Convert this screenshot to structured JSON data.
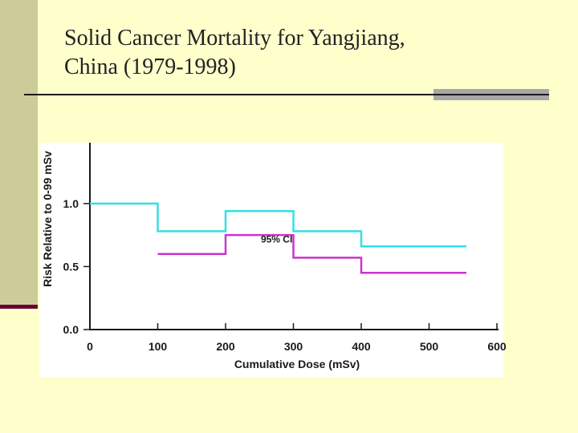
{
  "slide": {
    "title_line1": "Solid Cancer Mortality for Yangjiang,",
    "title_line2": "China (1979-1998)"
  },
  "chart_data": {
    "type": "line",
    "step": true,
    "title": "",
    "xlabel": "Cumulative Dose (mSv)",
    "ylabel": "Risk Relative to 0-99 mSv",
    "xlim": [
      0,
      600
    ],
    "ylim": [
      0,
      1.4
    ],
    "x_ticks": [
      0,
      100,
      200,
      300,
      400,
      500,
      600
    ],
    "x_tick_labels": [
      "0",
      "100",
      "200",
      "300",
      "400",
      "500",
      "600"
    ],
    "y_ticks": [
      0,
      0.5,
      1.0
    ],
    "y_tick_labels": [
      "0.0",
      "0.5",
      "1.0"
    ],
    "grid": false,
    "series": [
      {
        "name": "upper",
        "color": "#33e0e6",
        "steps": [
          {
            "x0": 0,
            "x1": 100,
            "y": 1.0
          },
          {
            "x0": 100,
            "x1": 200,
            "y": 0.78
          },
          {
            "x0": 200,
            "x1": 300,
            "y": 0.94
          },
          {
            "x0": 300,
            "x1": 400,
            "y": 0.78
          },
          {
            "x0": 400,
            "x1": 555,
            "y": 0.66
          }
        ]
      },
      {
        "name": "lower",
        "color": "#cc33cc",
        "steps": [
          {
            "x0": 100,
            "x1": 200,
            "y": 0.6
          },
          {
            "x0": 200,
            "x1": 300,
            "y": 0.75
          },
          {
            "x0": 300,
            "x1": 400,
            "y": 0.57
          },
          {
            "x0": 400,
            "x1": 555,
            "y": 0.45
          }
        ]
      }
    ],
    "annotations": [
      {
        "text": "95% CI",
        "x": 252,
        "y": 0.69
      }
    ]
  }
}
